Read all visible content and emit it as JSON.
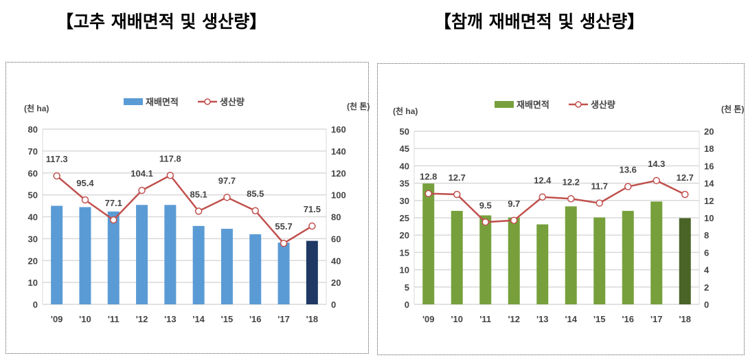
{
  "titles": [
    "【고추 재배면적 및 생산량】",
    "【참깨 재배면적 및 생산량】"
  ],
  "chart_data": [
    {
      "type": "bar+line",
      "title": "【고추 재배면적 및 생산량】",
      "categories": [
        "'09",
        "'10",
        "'11",
        "'12",
        "'13",
        "'14",
        "'15",
        "'16",
        "'17",
        "'18"
      ],
      "y_left_label": "(천 ha)",
      "y_right_label": "(천 톤)",
      "y_left_lim": [
        0,
        80
      ],
      "y_left_step": 10,
      "y_right_lim": [
        0,
        160
      ],
      "y_right_step": 20,
      "grid": true,
      "legend": "top-center",
      "series": [
        {
          "name": "재배면적",
          "type": "bar",
          "axis": "left",
          "color": "#5b9bd5",
          "highlight_last_color": "#1f3864",
          "values": [
            45.0,
            44.4,
            42.4,
            45.4,
            45.4,
            35.8,
            34.5,
            32.0,
            28.2,
            29.0
          ]
        },
        {
          "name": "생산량",
          "type": "line",
          "axis": "right",
          "color": "#c0504d",
          "values": [
            117.3,
            95.4,
            77.1,
            104.1,
            117.8,
            85.1,
            97.7,
            85.5,
            55.7,
            71.5
          ],
          "labels": [
            "117.3",
            "95.4",
            "77.1",
            "104.1",
            "117.8",
            "85.1",
            "97.7",
            "85.5",
            "55.7",
            "71.5"
          ]
        }
      ]
    },
    {
      "type": "bar+line",
      "title": "【참깨 재배면적 및 생산량】",
      "categories": [
        "'09",
        "'10",
        "'11",
        "'12",
        "'13",
        "'14",
        "'15",
        "'16",
        "'17",
        "'18"
      ],
      "y_left_label": "(천 ha)",
      "y_right_label": "(천 톤)",
      "y_left_lim": [
        0,
        50
      ],
      "y_left_step": 5,
      "y_right_lim": [
        0,
        20
      ],
      "y_right_step": 2,
      "grid": true,
      "legend": "top-center",
      "series": [
        {
          "name": "재배면적",
          "type": "bar",
          "axis": "left",
          "color": "#77a03c",
          "highlight_last_color": "#4a6327",
          "values": [
            34.9,
            27.0,
            25.7,
            25.1,
            23.1,
            28.3,
            25.1,
            27.0,
            29.7,
            24.9
          ]
        },
        {
          "name": "생산량",
          "type": "line",
          "axis": "right",
          "color": "#c0504d",
          "values": [
            12.8,
            12.7,
            9.5,
            9.7,
            12.4,
            12.2,
            11.7,
            13.6,
            14.3,
            12.7
          ],
          "labels": [
            "12.8",
            "12.7",
            "9.5",
            "9.7",
            "12.4",
            "12.2",
            "11.7",
            "13.6",
            "14.3",
            "12.7"
          ]
        }
      ]
    }
  ]
}
